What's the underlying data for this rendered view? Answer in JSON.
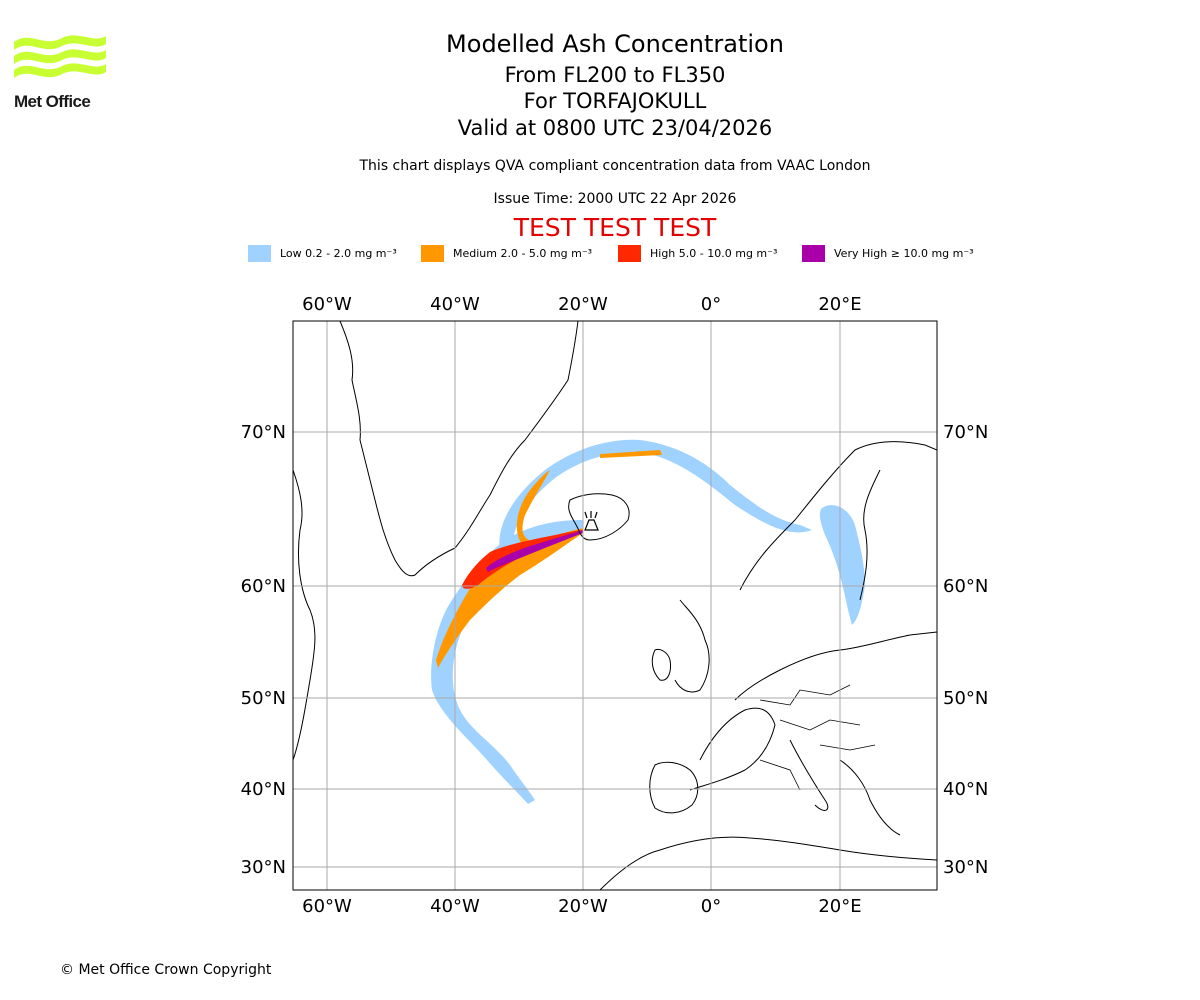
{
  "logo": {
    "text": "Met Office",
    "color": "#c8ff32"
  },
  "title": {
    "line1": "Modelled Ash Concentration",
    "line2": "From FL200 to FL350",
    "line3": "For TORFAJOKULL",
    "line4": "Valid at 0800 UTC 23/04/2026"
  },
  "subtitle": "This chart displays QVA compliant concentration data from VAAC London",
  "issue_time": "Issue Time: 2000 UTC 22 Apr 2026",
  "test_banner": "TEST TEST TEST",
  "legend": [
    {
      "label": "Low 0.2 - 2.0 mg m⁻³",
      "color": "#9fd2ff"
    },
    {
      "label": "Medium 2.0 - 5.0 mg m⁻³",
      "color": "#ff9800"
    },
    {
      "label": "High 5.0 - 10.0 mg m⁻³",
      "color": "#ff2800"
    },
    {
      "label": "Very High  ≥  10.0 mg m⁻³",
      "color": "#aa00aa"
    }
  ],
  "map": {
    "lon_labels": [
      "60°W",
      "40°W",
      "20°W",
      "0°",
      "20°E"
    ],
    "lat_labels": [
      "70°N",
      "60°N",
      "50°N",
      "40°N",
      "30°N"
    ],
    "volcano": "TORFAJOKULL"
  },
  "footer": "© Met Office Crown Copyright"
}
